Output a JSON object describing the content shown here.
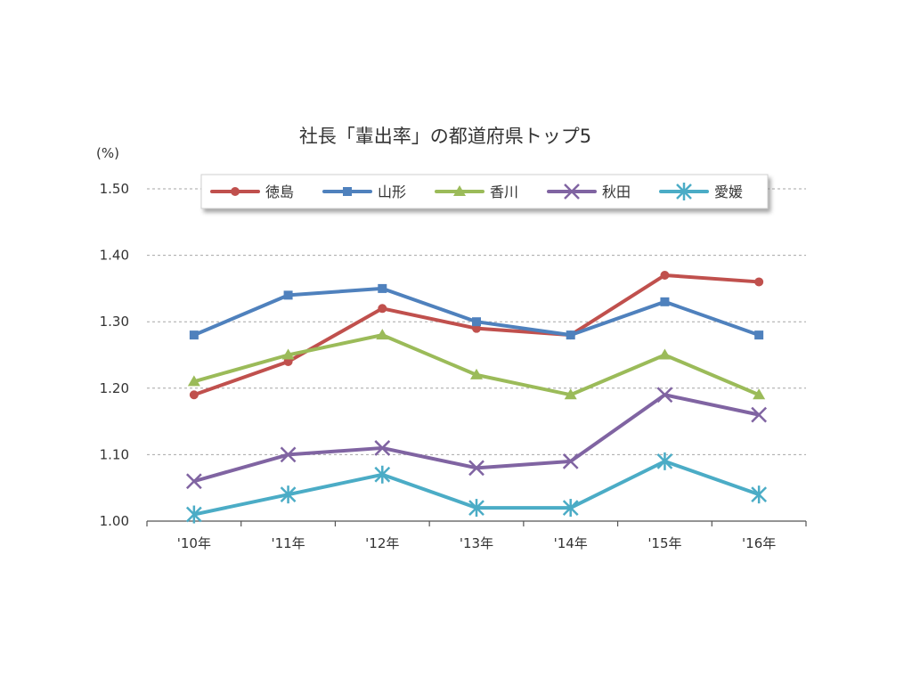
{
  "chart_data": {
    "type": "line",
    "title": "社長「輩出率」の都道府県トップ5",
    "ylabel": "(%)",
    "categories": [
      "'10年",
      "'11年",
      "'12年",
      "'13年",
      "'14年",
      "'15年",
      "'16年"
    ],
    "ylim": [
      1.0,
      1.5
    ],
    "yticks": [
      "1.00",
      "1.10",
      "1.20",
      "1.30",
      "1.40",
      "1.50"
    ],
    "grid": true,
    "legend_position": "top",
    "series": [
      {
        "name": "徳島",
        "color": "#c0504d",
        "marker": "circle",
        "values": [
          1.19,
          1.24,
          1.32,
          1.29,
          1.28,
          1.37,
          1.36
        ]
      },
      {
        "name": "山形",
        "color": "#4f81bd",
        "marker": "square",
        "values": [
          1.28,
          1.34,
          1.35,
          1.3,
          1.28,
          1.33,
          1.28
        ]
      },
      {
        "name": "香川",
        "color": "#9bbb59",
        "marker": "triangle",
        "values": [
          1.21,
          1.25,
          1.28,
          1.22,
          1.19,
          1.25,
          1.19
        ]
      },
      {
        "name": "秋田",
        "color": "#8064a2",
        "marker": "x",
        "values": [
          1.06,
          1.1,
          1.11,
          1.08,
          1.09,
          1.19,
          1.16
        ]
      },
      {
        "name": "愛媛",
        "color": "#4bacc6",
        "marker": "star",
        "values": [
          1.01,
          1.04,
          1.07,
          1.02,
          1.02,
          1.09,
          1.04
        ]
      }
    ]
  }
}
